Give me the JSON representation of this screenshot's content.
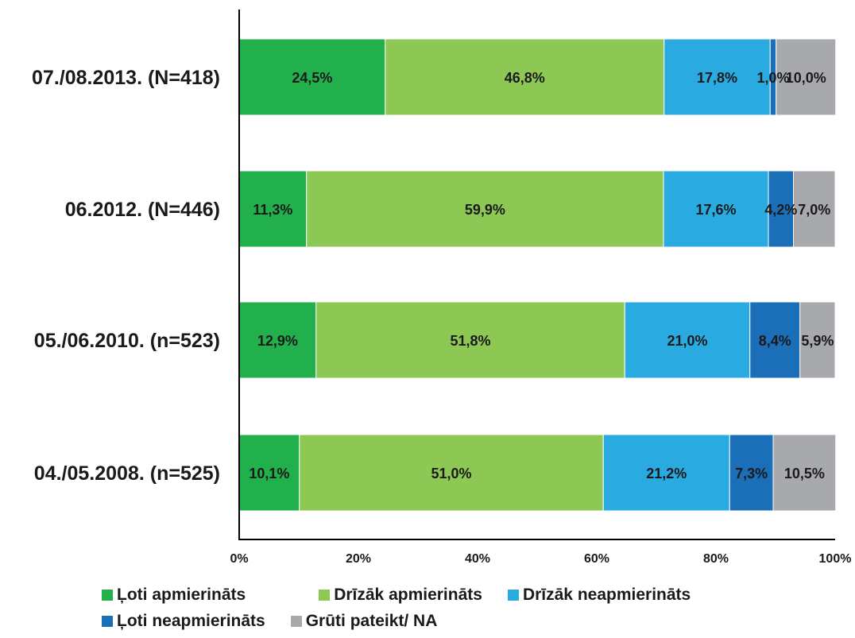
{
  "chart_data": {
    "type": "bar",
    "orientation": "horizontal",
    "stacked": true,
    "categories": [
      "07./08.2013. (N=418)",
      "06.2012. (N=446)",
      "05./06.2010. (n=523)",
      "04./05.2008. (n=525)"
    ],
    "series": [
      {
        "name": "Ļoti apmierināts",
        "color": "#21b04b",
        "values": [
          24.5,
          11.3,
          12.9,
          10.1
        ],
        "labels": [
          "24,5%",
          "11,3%",
          "12,9%",
          "10,1%"
        ]
      },
      {
        "name": "Drīzāk apmierināts",
        "color": "#8dc854",
        "values": [
          46.8,
          59.9,
          51.8,
          51.0
        ],
        "labels": [
          "46,8%",
          "59,9%",
          "51,8%",
          "51,0%"
        ]
      },
      {
        "name": "Drīzāk neapmierināts",
        "color": "#29abe2",
        "values": [
          17.8,
          17.6,
          21.0,
          21.2
        ],
        "labels": [
          "17,8%",
          "17,6%",
          "21,0%",
          "21,2%"
        ]
      },
      {
        "name": "Ļoti neapmierināts",
        "color": "#1b6fb8",
        "values": [
          1.0,
          4.2,
          8.4,
          7.3
        ],
        "labels": [
          "1,0%",
          "4,2%",
          "8,4%",
          "7,3%"
        ]
      },
      {
        "name": "Grūti pateikt/ NA",
        "color": "#a7a9ac",
        "values": [
          10.0,
          7.0,
          5.9,
          10.5
        ],
        "labels": [
          "10,0%",
          "7,0%",
          "5,9%",
          "10,5%"
        ]
      }
    ],
    "xlim": [
      0,
      100
    ],
    "x_ticks": [
      "0%",
      "20%",
      "40%",
      "60%",
      "80%",
      "100%"
    ],
    "grid": false,
    "legend_position": "bottom"
  }
}
